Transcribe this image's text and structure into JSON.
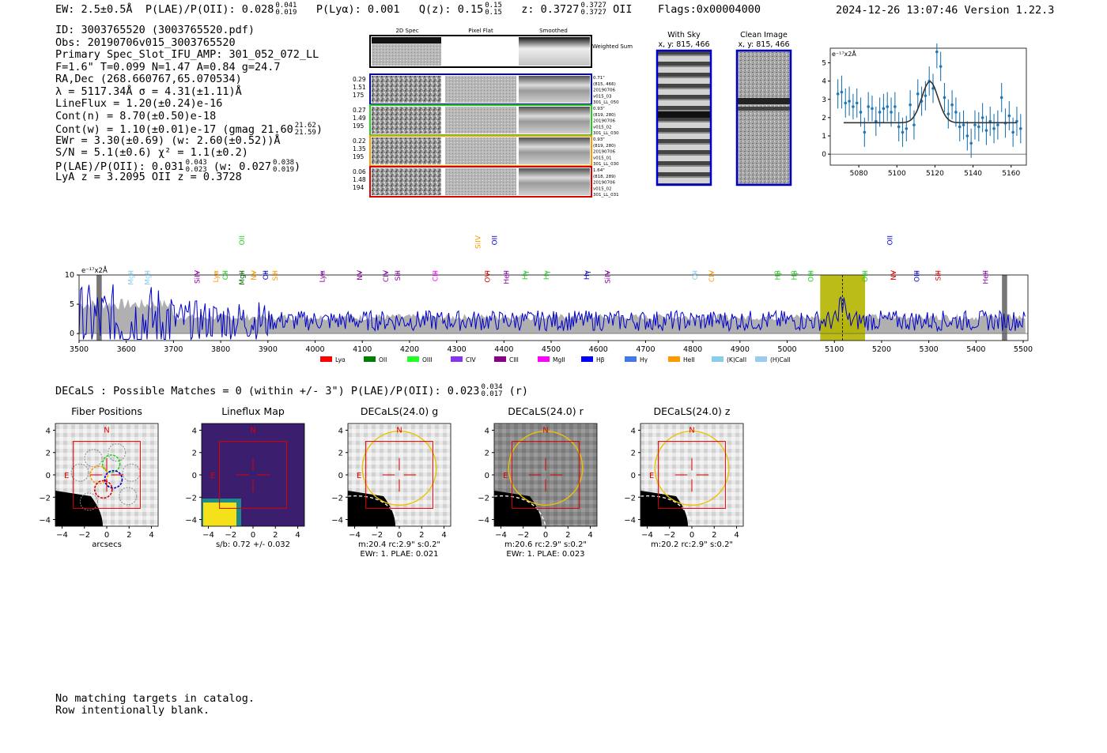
{
  "header": {
    "ew": "EW: 2.5±0.5Å",
    "plae_label": "P(LAE)/P(OII): 0.028",
    "plae_hi": "0.041",
    "plae_lo": "0.019",
    "plya": "P(Lyα): 0.001",
    "q_label": "Q(z): 0.15",
    "q_hi": "0.15",
    "q_lo": "0.15",
    "z_label": "z: 0.3727",
    "z_hi": "0.3727",
    "z_lo": "0.3727",
    "z_line": "OII",
    "flags": "Flags:0x00004000",
    "timestamp": "2024-12-26 13:07:46  Version 1.22.3"
  },
  "info": {
    "id": "ID: 3003765520 (3003765520.pdf)",
    "obs": "Obs: 20190706v015_3003765520",
    "primary": "Primary Spec_Slot_IFU_AMP: 301_052_072_LL",
    "fiber": "F=1.6\"  T=0.099  N=1.47  A=0.84  g=24.7",
    "radec": "RA,Dec (268.660767,65.070534)",
    "lambda": "λ = 5117.34Å  σ = 4.31(±1.11)Å",
    "lineflux": "LineFlux = 1.20(±0.24)e-16",
    "cont_n": "Cont(n) = 8.70(±0.50)e-18",
    "cont_w": "Cont(w) = 1.10(±0.01)e-17 (gmag 21.60",
    "cont_w_hi": "21.62",
    "cont_w_lo": "21.59",
    "cont_w_end": ")",
    "ewr": "EWr = 3.30(±0.69) (w: 2.60(±0.52))Å",
    "sn": "S/N = 5.1(±0.6)  χ² = 1.1(±0.2)",
    "plae": "P(LAE)/P(OII): 0.031",
    "plae_hi": "0.043",
    "plae_lo": "0.023",
    "plae_w": "(w: 0.027",
    "plae_w_hi": "0.038",
    "plae_w_lo": "0.019",
    "plae_w_end": ")",
    "lya_z": "LyA z = 3.2095  OII z = 0.3728"
  },
  "cutouts": {
    "col_headers": [
      "2D Spec",
      "Pixel Flat",
      "Smoothed"
    ],
    "weighted_sum": "Weighted Sum",
    "rows": [
      {
        "left": [
          "0.29",
          "1.51",
          "175"
        ],
        "right": [
          "0.71\"",
          "(815, 466)",
          "20190706",
          "v015_03",
          "301_LL_050"
        ],
        "color": "#0000cc"
      },
      {
        "left": [
          "0.27",
          "1.49",
          "195"
        ],
        "right": [
          "0.93\"",
          "(819, 280)",
          "20190706",
          "v015_02",
          "301_LL_030"
        ],
        "color": "#22cc22"
      },
      {
        "left": [
          "0.22",
          "1.35",
          "195"
        ],
        "right": [
          "0.93\"",
          "(819, 280)",
          "20190706",
          "v015_01",
          "301_LL_030"
        ],
        "color": "#ff9900"
      },
      {
        "left": [
          "0.06",
          "1.48",
          "194"
        ],
        "right": [
          "1.64\"",
          "(818, 289)",
          "20190706",
          "v015_02",
          "301_LL_031"
        ],
        "color": "#dd0000"
      }
    ]
  },
  "sky": {
    "with_sky_title": "With Sky",
    "with_sky_coords": "x, y: 815, 466",
    "clean_title": "Clean Image",
    "clean_coords": "x, y: 815, 466"
  },
  "decals": {
    "summary": "DECaLS : Possible Matches = 0 (within +/- 3\")  P(LAE)/P(OII): 0.023",
    "summary_hi": "0.034",
    "summary_lo": "0.017",
    "summary_end": "(r)",
    "panels": [
      {
        "title": "Fiber Positions",
        "caption1": "arcsecs",
        "caption2": ""
      },
      {
        "title": "Lineflux Map",
        "caption1": "s/b: 0.72 +/- 0.032",
        "caption2": ""
      },
      {
        "title": "DECaLS(24.0) g",
        "caption1": "m:20.4 rc:2.9\"  s:0.2\"",
        "caption2": "EWr: 1. PLAE: 0.021"
      },
      {
        "title": "DECaLS(24.0) r",
        "caption1": "m:20.6 rc:2.9\"  s:0.2\"",
        "caption2": "EWr: 1. PLAE: 0.023"
      },
      {
        "title": "DECaLS(24.0) z",
        "caption1": "m:20.2 rc:2.9\"  s:0.2\"",
        "caption2": ""
      }
    ],
    "axis_ticks": [
      "−4",
      "−2",
      "0",
      "2",
      "4"
    ],
    "north_label": "N",
    "east_label": "E"
  },
  "footer": {
    "line1": "No matching targets in catalog.",
    "line2": "Row intentionally blank."
  },
  "colors": {
    "spectrum_line": "#0000cc",
    "fill_gray": "#b0b0b0",
    "highlight": "#b5b500",
    "fit_point": "#1f77b4",
    "box_red": "#dd0000",
    "circle_gold": "#f0c000"
  },
  "chart_data": [
    {
      "type": "line",
      "title": "",
      "ylabel": "e⁻¹⁷x2Å",
      "x_ticks": [
        5080,
        5100,
        5120,
        5140,
        5160
      ],
      "y_ticks": [
        0,
        1,
        2,
        3,
        4,
        5
      ],
      "xlim": [
        5065,
        5168
      ],
      "ylim": [
        -0.6,
        5.8
      ],
      "points_x": [
        5069,
        5071,
        5073,
        5075,
        5077,
        5079,
        5081,
        5083,
        5085,
        5087,
        5089,
        5091,
        5093,
        5095,
        5097,
        5099,
        5101,
        5103,
        5105,
        5107,
        5109,
        5111,
        5113,
        5115,
        5117,
        5119,
        5121,
        5123,
        5125,
        5127,
        5129,
        5131,
        5133,
        5135,
        5137,
        5139,
        5141,
        5143,
        5145,
        5147,
        5149,
        5151,
        5153,
        5155,
        5157,
        5159,
        5161,
        5163,
        5165
      ],
      "points_y": [
        3.3,
        3.4,
        2.8,
        2.9,
        2.6,
        2.8,
        2.3,
        1.2,
        2.6,
        2.5,
        1.8,
        2.3,
        2.5,
        2.6,
        2.3,
        2.6,
        1.5,
        1.2,
        1.4,
        2.7,
        1.6,
        3.3,
        2.9,
        3.2,
        4.0,
        3.6,
        5.6,
        4.8,
        3.1,
        2.2,
        2.7,
        2.3,
        1.5,
        1.6,
        1.0,
        0.6,
        1.6,
        1.5,
        2.0,
        1.3,
        1.8,
        1.4,
        1.6,
        3.1,
        1.7,
        2.1,
        1.2,
        1.8,
        1.4
      ],
      "errors": [
        0.8,
        0.9,
        0.8,
        0.8,
        0.7,
        0.8,
        0.8,
        0.8,
        0.8,
        0.7,
        0.8,
        0.8,
        0.8,
        0.8,
        0.8,
        0.8,
        0.8,
        0.8,
        0.7,
        0.8,
        0.8,
        0.8,
        0.8,
        0.8,
        0.8,
        0.8,
        0.9,
        0.8,
        0.8,
        0.8,
        0.8,
        0.8,
        0.8,
        0.8,
        0.8,
        0.8,
        0.8,
        0.8,
        0.8,
        0.8,
        0.8,
        0.8,
        0.8,
        0.8,
        0.8,
        0.8,
        0.8,
        0.8,
        0.8
      ],
      "fit": {
        "continuum": 1.72,
        "amplitude": 2.25,
        "center": 5117.34,
        "sigma": 4.31
      }
    },
    {
      "type": "line",
      "title": "",
      "ylabel": "e⁻¹⁷x2Å",
      "x_ticks": [
        3500,
        3600,
        3700,
        3800,
        3900,
        4000,
        4100,
        4200,
        4300,
        4400,
        4500,
        4600,
        4700,
        4800,
        4900,
        5000,
        5100,
        5200,
        5300,
        5400,
        5500
      ],
      "y_ticks": [
        0,
        5,
        10
      ],
      "xlim": [
        3500,
        5510
      ],
      "ylim": [
        -1.2,
        10
      ],
      "highlight_range": [
        5070,
        5165
      ],
      "line_center": 5117.34,
      "gray_band": [
        [
          3537,
          3548
        ],
        [
          5455,
          5466
        ]
      ],
      "emission_lines": [
        {
          "label": "MgII",
          "x": 3610,
          "color": "#87ceeb"
        },
        {
          "label": "MgII",
          "x": 3645,
          "color": "#87ceeb"
        },
        {
          "label": "SiIV",
          "x": 3750,
          "color": "#8800aa"
        },
        {
          "label": "Lyα",
          "x": 3790,
          "color": "#ff9900"
        },
        {
          "label": "OII",
          "x": 3810,
          "color": "#22cc22"
        },
        {
          "label": "MgII",
          "x": 3845,
          "color": "#006600"
        },
        {
          "label": "NV",
          "x": 3870,
          "color": "#ff9900"
        },
        {
          "label": "OII",
          "x": 3895,
          "color": "#0000cc"
        },
        {
          "label": "SiII",
          "x": 3915,
          "color": "#ff9900"
        },
        {
          "label": "Lyα",
          "x": 4015,
          "color": "#8800aa"
        },
        {
          "label": "NV",
          "x": 4095,
          "color": "#8800aa"
        },
        {
          "label": "CIV",
          "x": 4150,
          "color": "#8800aa"
        },
        {
          "label": "SiII",
          "x": 4175,
          "color": "#8800aa"
        },
        {
          "label": "CIII",
          "x": 4255,
          "color": "#ff00ff"
        },
        {
          "label": "OVI",
          "x": 4365,
          "color": "#dd0000"
        },
        {
          "label": "HeII",
          "x": 4405,
          "color": "#8800aa"
        },
        {
          "label": "Hγ",
          "x": 4445,
          "color": "#22cc22"
        },
        {
          "label": "Hγ",
          "x": 4490,
          "color": "#22cc22"
        },
        {
          "label": "Hγ",
          "x": 4575,
          "color": "#0000cc"
        },
        {
          "label": "SiIV",
          "x": 4620,
          "color": "#8800aa"
        },
        {
          "label": "OII",
          "x": 4805,
          "color": "#87ceeb"
        },
        {
          "label": "CIV",
          "x": 4840,
          "color": "#ff9900"
        },
        {
          "label": "Hβ",
          "x": 4980,
          "color": "#22cc22"
        },
        {
          "label": "Hβ",
          "x": 5015,
          "color": "#22cc22"
        },
        {
          "label": "OIII",
          "x": 5050,
          "color": "#22cc22"
        },
        {
          "label": "OIII",
          "x": 5165,
          "color": "#22cc22"
        },
        {
          "label": "NV",
          "x": 5225,
          "color": "#dd0000"
        },
        {
          "label": "OIII",
          "x": 5275,
          "color": "#0000cc"
        },
        {
          "label": "SiII",
          "x": 5320,
          "color": "#dd0000"
        },
        {
          "label": "HeII",
          "x": 5420,
          "color": "#8800aa"
        }
      ],
      "high_labels": [
        {
          "label": "OII",
          "x": 3845,
          "color": "#22cc22"
        },
        {
          "label": "SiIV",
          "x": 4345,
          "color": "#ff9900"
        },
        {
          "label": "OII",
          "x": 4380,
          "color": "#0000cc"
        },
        {
          "label": "OII",
          "x": 5218,
          "color": "#0000cc"
        }
      ],
      "legend": [
        {
          "label": "Lyα",
          "color": "#ff0000"
        },
        {
          "label": "OII",
          "color": "#008000"
        },
        {
          "label": "OIII",
          "color": "#22ff22"
        },
        {
          "label": "CIV",
          "color": "#8833ee"
        },
        {
          "label": "CIII",
          "color": "#880088"
        },
        {
          "label": "MgII",
          "color": "#ff00ff"
        },
        {
          "label": "Hβ",
          "color": "#0000ff"
        },
        {
          "label": "Hγ",
          "color": "#4477ee"
        },
        {
          "label": "HeII",
          "color": "#ff9900"
        },
        {
          "label": "(K)CaII",
          "color": "#87ceeb"
        },
        {
          "label": "(H)CaII",
          "color": "#99ccee"
        }
      ]
    }
  ]
}
